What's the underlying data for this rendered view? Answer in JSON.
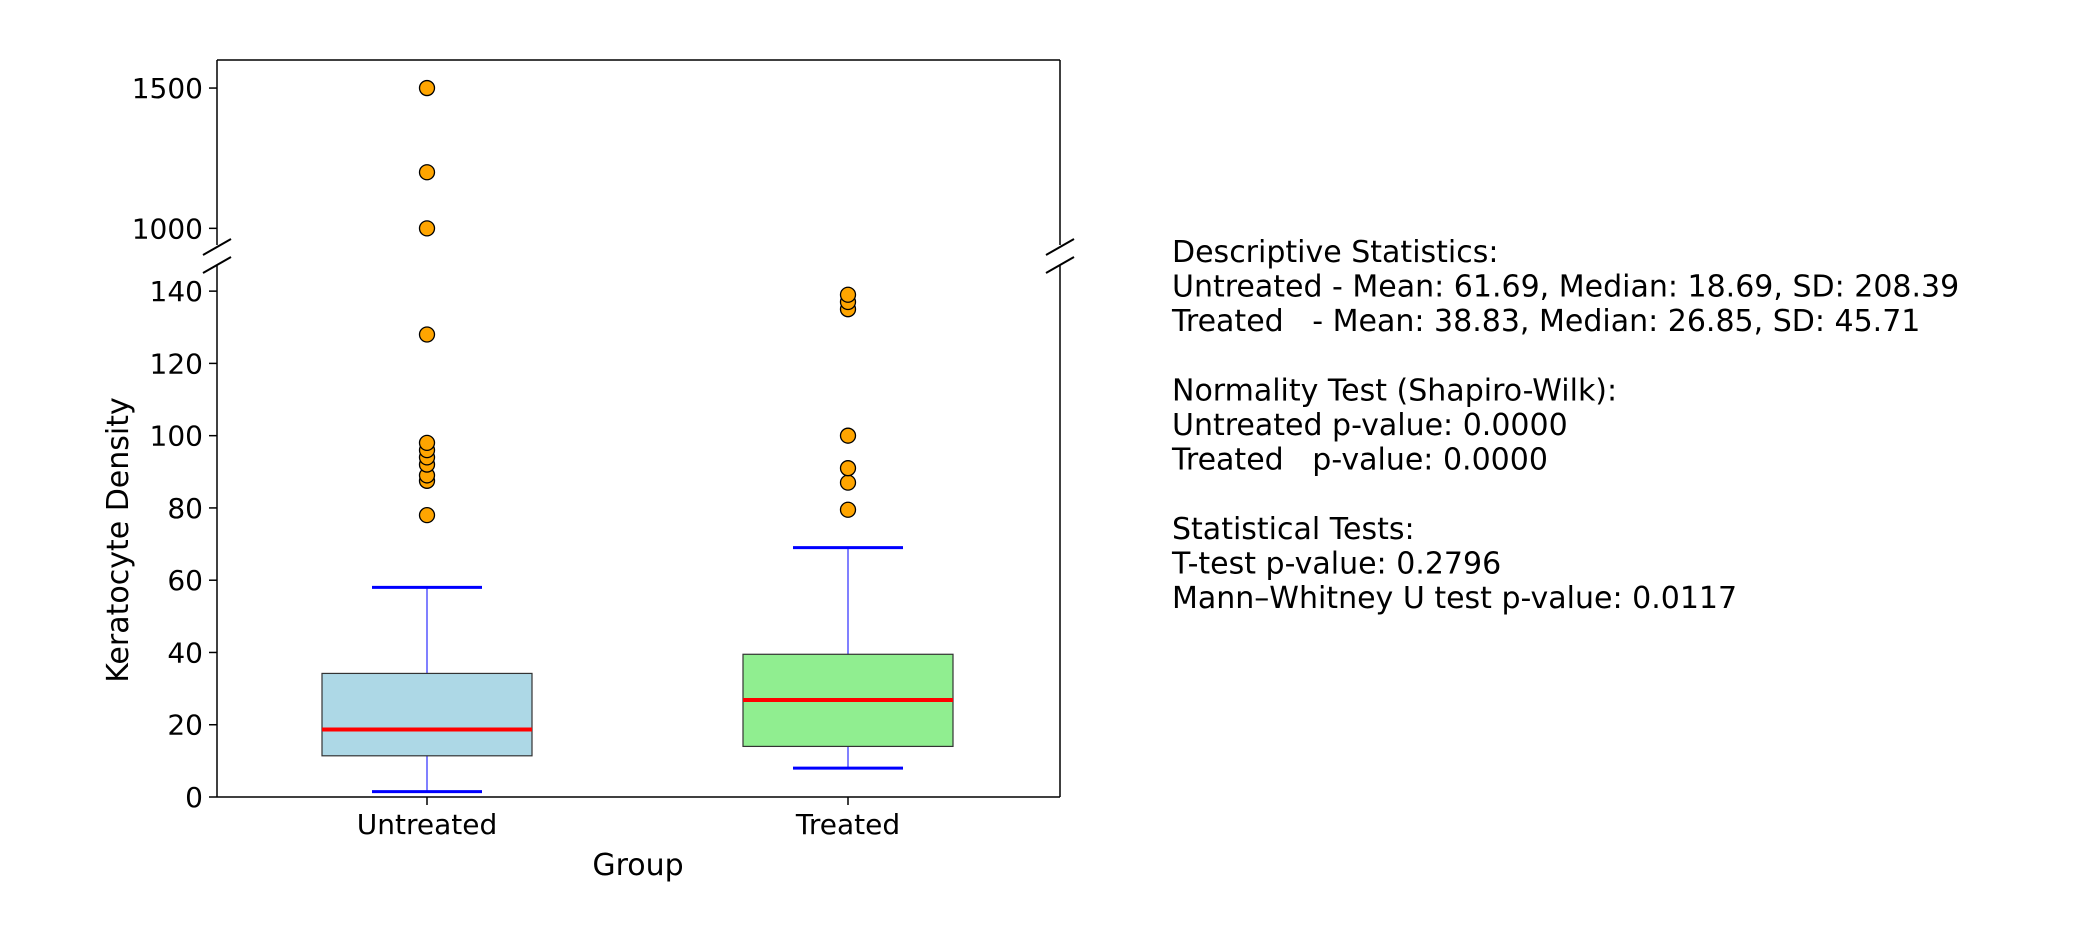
{
  "chart_data": {
    "type": "box",
    "xlabel": "Group",
    "ylabel": "Keratocyte Density",
    "y_axis": "broken",
    "ylim_lower": [
      0,
      150
    ],
    "ylim_upper": [
      905,
      1600
    ],
    "yticks_lower": [
      "0",
      "20",
      "40",
      "60",
      "80",
      "100",
      "120",
      "140"
    ],
    "yticks_upper": [
      "1000",
      "1500"
    ],
    "grid": false,
    "categories": [
      "Untreated",
      "Treated"
    ],
    "series": [
      {
        "category": "Untreated",
        "box_color": "#add8e6",
        "q1": 11.4,
        "median": 18.69,
        "q3": 34.2,
        "whisker_low": 1.5,
        "whisker_high": 58,
        "outliers": [
          78,
          87.5,
          89,
          92,
          94,
          96,
          98,
          128,
          1000,
          1200,
          1500
        ]
      },
      {
        "category": "Treated",
        "box_color": "#90ee90",
        "q1": 14,
        "median": 26.85,
        "q3": 39.5,
        "whisker_low": 8,
        "whisker_high": 69,
        "outliers": [
          79.5,
          87,
          91,
          100,
          135,
          137,
          139
        ]
      }
    ],
    "colors": {
      "median": "#ff0000",
      "whisker": "#0000ff",
      "outlier_fill": "#ffa500",
      "outlier_edge": "#000000"
    }
  },
  "stats_text": [
    "Descriptive Statistics:",
    "Untreated - Mean: 61.69, Median: 18.69, SD: 208.39",
    "Treated   - Mean: 38.83, Median: 26.85, SD: 45.71",
    "",
    "Normality Test (Shapiro-Wilk):",
    "Untreated p-value: 0.0000",
    "Treated   p-value: 0.0000",
    "",
    "Statistical Tests:",
    "T-test p-value: 0.2796",
    "Mann–Whitney U test p-value: 0.0117"
  ]
}
